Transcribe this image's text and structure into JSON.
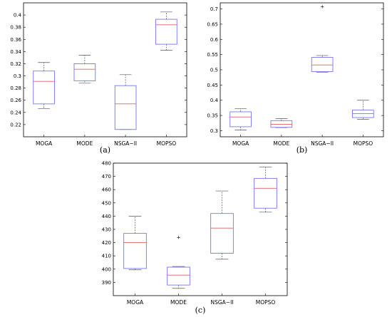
{
  "chart_data": [
    {
      "type": "box",
      "panel_label": "(a)",
      "categories": [
        "MOGA",
        "MODE",
        "NSGA−II",
        "MOPSO"
      ],
      "ylim": [
        0.2,
        0.42
      ],
      "yticks": [
        0.22,
        0.24,
        0.26,
        0.28,
        0.3,
        0.32,
        0.34,
        0.36,
        0.38,
        0.4
      ],
      "ytick_labels": [
        "0.22",
        "0.24",
        "0.26",
        "0.28",
        "0.3",
        "0.32",
        "0.34",
        "0.36",
        "0.38",
        "0.4"
      ],
      "boxes": [
        {
          "min": 0.246,
          "q1": 0.254,
          "median": 0.291,
          "q3": 0.308,
          "max": 0.322,
          "outliers": []
        },
        {
          "min": 0.288,
          "q1": 0.292,
          "median": 0.311,
          "q3": 0.32,
          "max": 0.334,
          "outliers": []
        },
        {
          "min": 0.212,
          "q1": 0.212,
          "median": 0.254,
          "q3": 0.284,
          "max": 0.302,
          "outliers": []
        },
        {
          "min": 0.342,
          "q1": 0.352,
          "median": 0.384,
          "q3": 0.393,
          "max": 0.405,
          "outliers": []
        }
      ]
    },
    {
      "type": "box",
      "panel_label": "(b)",
      "categories": [
        "MOGA",
        "MODE",
        "NSGA−II",
        "MOPSO"
      ],
      "ylim": [
        0.28,
        0.72
      ],
      "yticks": [
        0.3,
        0.35,
        0.4,
        0.45,
        0.5,
        0.55,
        0.6,
        0.65,
        0.7
      ],
      "ytick_labels": [
        "0.3",
        "0.35",
        "0.4",
        "0.45",
        "0.5",
        "0.55",
        "0.6",
        "0.65",
        "0.7"
      ],
      "boxes": [
        {
          "min": 0.302,
          "q1": 0.313,
          "median": 0.345,
          "q3": 0.362,
          "max": 0.372,
          "outliers": []
        },
        {
          "min": 0.31,
          "q1": 0.311,
          "median": 0.321,
          "q3": 0.333,
          "max": 0.34,
          "outliers": []
        },
        {
          "min": 0.492,
          "q1": 0.494,
          "median": 0.516,
          "q3": 0.541,
          "max": 0.547,
          "outliers": [
            0.708
          ]
        },
        {
          "min": 0.337,
          "q1": 0.343,
          "median": 0.356,
          "q3": 0.368,
          "max": 0.4,
          "outliers": []
        }
      ]
    },
    {
      "type": "box",
      "panel_label": "(c)",
      "categories": [
        "MOGA",
        "MODE",
        "NSGA−II",
        "MOPSO"
      ],
      "ylim": [
        380,
        480
      ],
      "yticks": [
        390,
        400,
        410,
        420,
        430,
        440,
        450,
        460,
        470,
        480
      ],
      "ytick_labels": [
        "390",
        "400",
        "410",
        "420",
        "430",
        "440",
        "450",
        "460",
        "470",
        "480"
      ],
      "boxes": [
        {
          "min": 399.5,
          "q1": 400.5,
          "median": 420,
          "q3": 427,
          "max": 440,
          "outliers": []
        },
        {
          "min": 385.5,
          "q1": 388,
          "median": 395.5,
          "q3": 401.5,
          "max": 402,
          "outliers": [
            424
          ]
        },
        {
          "min": 407.5,
          "q1": 412,
          "median": 431,
          "q3": 442,
          "max": 459,
          "outliers": []
        },
        {
          "min": 443,
          "q1": 446,
          "median": 461,
          "q3": 468.5,
          "max": 477,
          "outliers": []
        }
      ]
    }
  ],
  "colors": {
    "box": "#7777ee",
    "median": "#e06060",
    "whisker": "#555555",
    "axis": "#000000"
  }
}
